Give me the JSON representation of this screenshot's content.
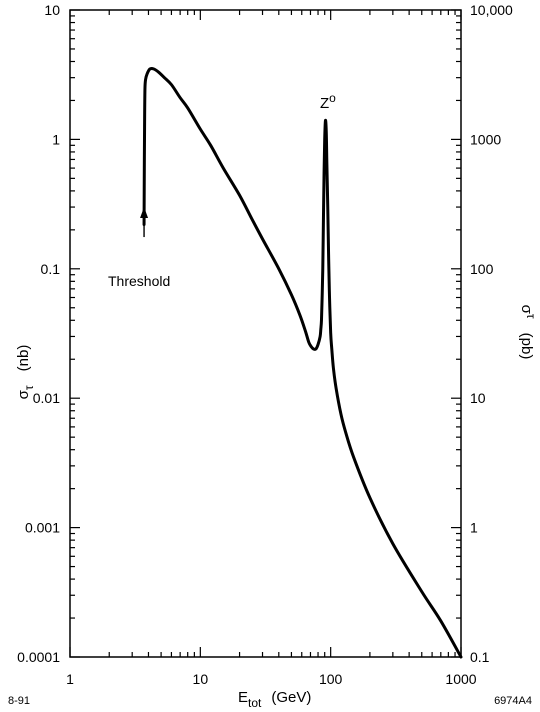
{
  "chart_data": {
    "type": "line",
    "x_scale": "log",
    "y_scale": "log",
    "xlim": [
      1,
      1000
    ],
    "ylim": [
      0.0001,
      10
    ],
    "x_ticks": [
      {
        "value": 1,
        "label": "1"
      },
      {
        "value": 10,
        "label": "10"
      },
      {
        "value": 100,
        "label": "100"
      },
      {
        "value": 1000,
        "label": "1000"
      }
    ],
    "y_ticks_left": [
      {
        "value": 10,
        "label": "10"
      },
      {
        "value": 1,
        "label": "1"
      },
      {
        "value": 0.1,
        "label": "0.1"
      },
      {
        "value": 0.01,
        "label": "0.01"
      },
      {
        "value": 0.001,
        "label": "0.001"
      },
      {
        "value": 0.0001,
        "label": "0.0001"
      }
    ],
    "y_ticks_right": [
      {
        "value": 10,
        "label": "10,000"
      },
      {
        "value": 1,
        "label": "1000"
      },
      {
        "value": 0.1,
        "label": "100"
      },
      {
        "value": 0.01,
        "label": "10"
      },
      {
        "value": 0.001,
        "label": "1"
      },
      {
        "value": 0.0001,
        "label": "0.1"
      }
    ],
    "xlabel": {
      "main": "E",
      "sub": "tot",
      "unit": "(GeV)"
    },
    "ylabel_left": {
      "main": "σ",
      "sub": "τ",
      "unit": "(nb)"
    },
    "ylabel_right": {
      "main": "σ",
      "sub": "τ",
      "unit": "(pb)"
    },
    "series": [
      {
        "x": [
          3.7,
          3.72,
          3.74,
          3.76,
          3.8,
          3.9,
          4.1,
          4.4,
          4.8,
          5.3,
          6,
          7,
          8,
          10,
          12,
          15,
          20,
          25,
          30,
          40,
          50,
          58,
          64,
          68,
          71,
          74,
          77,
          80,
          83,
          84,
          85,
          86,
          87,
          88,
          89,
          90,
          91.2,
          92.5,
          93.5,
          95,
          96.5,
          98,
          100,
          102,
          105,
          110,
          120,
          130,
          150,
          200,
          300,
          500,
          700,
          1000
        ],
        "y": [
          0.22,
          0.7,
          1.6,
          2.5,
          2.9,
          3.2,
          3.5,
          3.5,
          3.3,
          3.0,
          2.65,
          2.1,
          1.75,
          1.2,
          0.9,
          0.6,
          0.37,
          0.24,
          0.17,
          0.1,
          0.063,
          0.044,
          0.033,
          0.027,
          0.025,
          0.024,
          0.024,
          0.026,
          0.03,
          0.034,
          0.04,
          0.06,
          0.1,
          0.24,
          0.55,
          1.0,
          1.4,
          1.15,
          0.65,
          0.3,
          0.12,
          0.06,
          0.032,
          0.024,
          0.017,
          0.012,
          0.0075,
          0.0055,
          0.0035,
          0.0017,
          0.00075,
          0.00032,
          0.00019,
          0.0001
        ]
      }
    ],
    "annotations": [
      {
        "text": "Threshold",
        "x": 3.7,
        "y": 0.085,
        "arrow_to_y": 0.3
      },
      {
        "text": "Z",
        "superscript": "o",
        "x": 92,
        "y": 2.2
      }
    ]
  },
  "footer": {
    "left": "8-91",
    "right": "6974A4"
  }
}
